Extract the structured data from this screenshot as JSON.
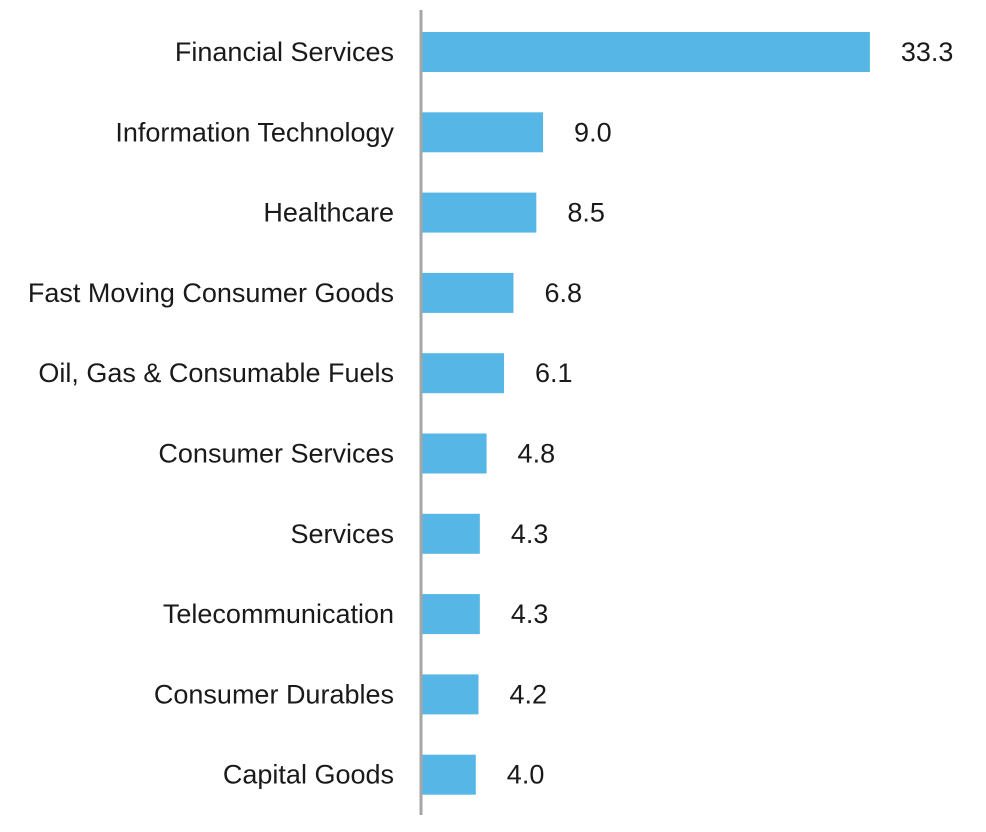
{
  "chart_data": {
    "type": "bar",
    "orientation": "horizontal",
    "title": "",
    "xlabel": "",
    "ylabel": "",
    "categories": [
      "Financial Services",
      "Information Technology",
      "Healthcare",
      "Fast Moving Consumer Goods",
      "Oil, Gas & Consumable Fuels",
      "Consumer Services",
      "Services",
      "Telecommunication",
      "Consumer Durables",
      "Capital Goods"
    ],
    "values": [
      33.3,
      9.0,
      8.5,
      6.8,
      6.1,
      4.8,
      4.3,
      4.3,
      4.2,
      4.0
    ],
    "value_labels": [
      "33.3",
      "9.0",
      "8.5",
      "6.8",
      "6.1",
      "4.8",
      "4.3",
      "4.3",
      "4.2",
      "4.0"
    ],
    "xlim": [
      0,
      33.3
    ],
    "grid": false,
    "legend": "none",
    "colors": {
      "bar": "#56b6e6",
      "axis": "#a6a6a6",
      "text": "#1a1a1a"
    }
  }
}
